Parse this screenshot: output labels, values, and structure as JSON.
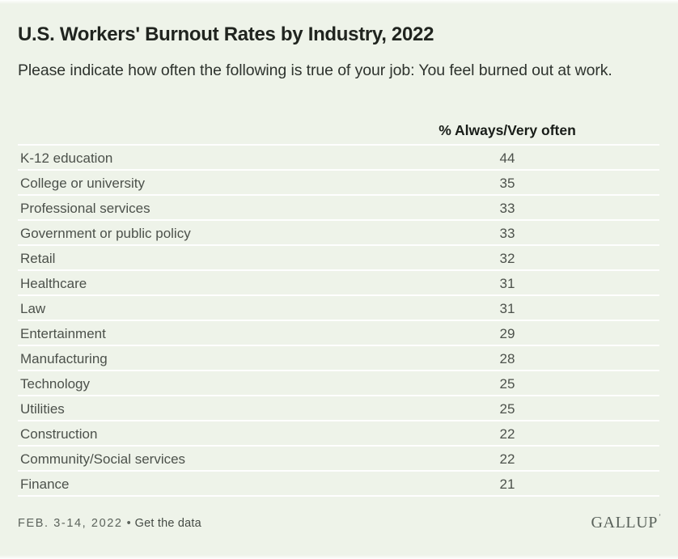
{
  "page": {
    "background_color": "#eef3e9",
    "title": "U.S. Workers' Burnout Rates by Industry, 2022",
    "subtitle": "Please indicate how often the following is true of your job: You feel burned out at work."
  },
  "chart_data": {
    "type": "table",
    "title": "U.S. Workers' Burnout Rates by Industry, 2022",
    "subtitle": "Please indicate how often the following is true of your job: You feel burned out at work.",
    "value_column_header": "% Always/Very often",
    "categories": [
      "K-12 education",
      "College or university",
      "Professional services",
      "Government or public policy",
      "Retail",
      "Healthcare",
      "Law",
      "Entertainment",
      "Manufacturing",
      "Technology",
      "Utilities",
      "Construction",
      "Community/Social services",
      "Finance"
    ],
    "values": [
      44,
      35,
      33,
      33,
      32,
      31,
      31,
      29,
      28,
      25,
      25,
      22,
      22,
      21
    ]
  },
  "footer": {
    "date": "FEB. 3-14, 2022",
    "separator": "•",
    "link_label": "Get the data",
    "logo": "GALLUP",
    "logo_trademark": "’"
  }
}
